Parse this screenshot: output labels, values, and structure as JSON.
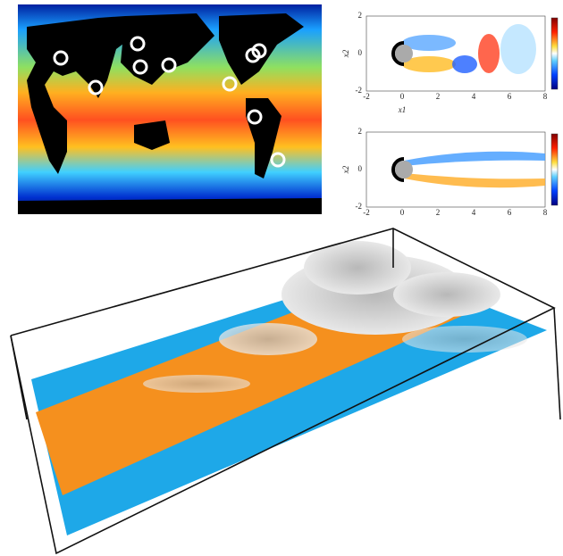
{
  "wake_plots": [
    {
      "yticks": [
        "2",
        "0",
        "-2"
      ],
      "ylabel": "x2",
      "xticks": [
        "-2",
        "0",
        "2",
        "4",
        "6",
        "8"
      ],
      "xlabel": "x1"
    },
    {
      "yticks": [
        "2",
        "0",
        "-2"
      ],
      "ylabel": "x2",
      "xticks": [
        "-2",
        "0",
        "2",
        "4",
        "6",
        "8"
      ]
    }
  ]
}
